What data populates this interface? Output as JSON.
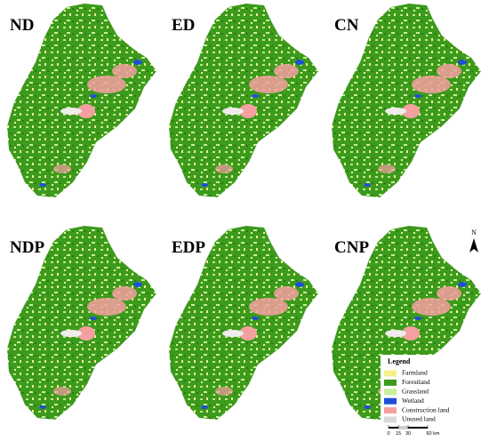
{
  "panels": [
    {
      "label": "ND"
    },
    {
      "label": "ED"
    },
    {
      "label": "CN"
    },
    {
      "label": "NDP"
    },
    {
      "label": "EDP"
    },
    {
      "label": "CNP"
    }
  ],
  "legend": {
    "title": "Legend",
    "items": [
      {
        "label": "Farmland",
        "color": "#f5f08a"
      },
      {
        "label": "Forestland",
        "color": "#3c9a1c"
      },
      {
        "label": "Grassland",
        "color": "#c8ef9a"
      },
      {
        "label": "Wetland",
        "color": "#1f4fd6"
      },
      {
        "label": "Construction land",
        "color": "#f4a0a0"
      },
      {
        "label": "Unused land",
        "color": "#d9d9d9"
      }
    ]
  },
  "north_arrow": {
    "label": "N"
  },
  "scale_bar": {
    "ticks": [
      "0",
      "15",
      "30",
      "60 km"
    ]
  }
}
